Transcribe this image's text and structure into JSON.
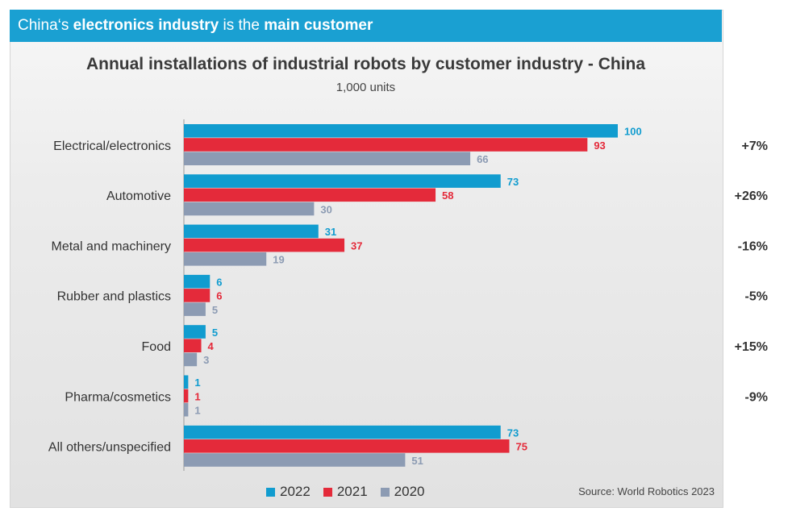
{
  "header": {
    "banner_parts": [
      {
        "text": "China‘s ",
        "bold": false
      },
      {
        "text": "electronics industry",
        "bold": true
      },
      {
        "text": " is the ",
        "bold": false
      },
      {
        "text": "main customer",
        "bold": true
      }
    ]
  },
  "colors": {
    "banner": "#1aa0d2",
    "series_2022": "#119ccf",
    "series_2021": "#e42a3a",
    "series_2020": "#8c9bb3"
  },
  "chart_data": {
    "type": "bar",
    "orientation": "horizontal",
    "title": "Annual installations of industrial robots by customer industry - China",
    "subtitle": "1,000 units",
    "categories": [
      "Electrical/electronics",
      "Automotive",
      "Metal and machinery",
      "Rubber and plastics",
      "Food",
      "Pharma/cosmetics",
      "All others/unspecified"
    ],
    "series": [
      {
        "name": "2022",
        "values": [
          100,
          73,
          31,
          6,
          5,
          1,
          73
        ]
      },
      {
        "name": "2021",
        "values": [
          93,
          58,
          37,
          6,
          4,
          1,
          75
        ]
      },
      {
        "name": "2020",
        "values": [
          66,
          30,
          19,
          5,
          3,
          1,
          51
        ]
      }
    ],
    "growth_labels": [
      "+7%",
      "+26%",
      "-16%",
      "-5%",
      "+15%",
      "-9%"
    ],
    "xlim": [
      0,
      100
    ],
    "grid": false,
    "legend_position": "bottom"
  },
  "source": "Source: World Robotics 2023"
}
